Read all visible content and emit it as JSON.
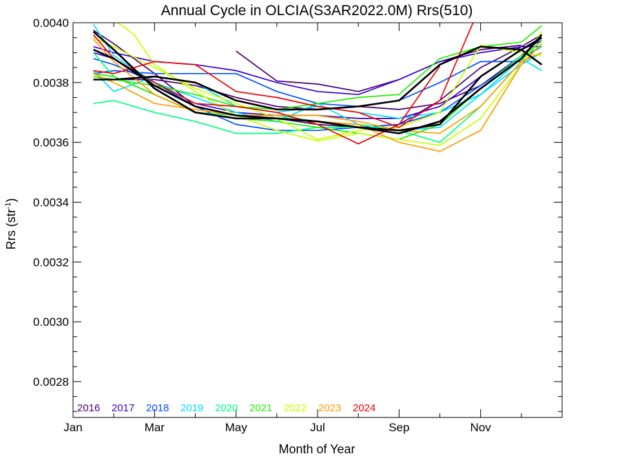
{
  "chart_data": {
    "type": "line",
    "title": "Annual Cycle in OLCIA(S3AR2022.0M) Rrs(510)",
    "xlabel": "Month of Year",
    "ylabel": "Rrs (str",
    "ylabel_superscript": "-1",
    "ylabel_suffix": ")",
    "xlim": [
      0,
      12
    ],
    "ylim": [
      0.00268,
      0.004
    ],
    "x_ticks": [
      0,
      2,
      4,
      6,
      8,
      10
    ],
    "x_tick_labels": [
      "Jan",
      "Mar",
      "May",
      "Jul",
      "Sep",
      "Nov"
    ],
    "y_ticks": [
      0.0028,
      0.003,
      0.0032,
      0.0034,
      0.0036,
      0.0038,
      0.004
    ],
    "y_tick_labels": [
      "0.0028",
      "0.0030",
      "0.0032",
      "0.0034",
      "0.0036",
      "0.0038",
      "0.0040"
    ],
    "grid": false,
    "legend_position": "bottom-left",
    "legend": [
      {
        "label": "2016",
        "color": "#4a0070"
      },
      {
        "label": "2017",
        "color": "#3a00d8"
      },
      {
        "label": "2018",
        "color": "#0050ff"
      },
      {
        "label": "2019",
        "color": "#00ddff"
      },
      {
        "label": "2020",
        "color": "#00ff80"
      },
      {
        "label": "2021",
        "color": "#20ee00"
      },
      {
        "label": "2022",
        "color": "#c8ff00"
      },
      {
        "label": "2023",
        "color": "#ff9a00"
      },
      {
        "label": "2024",
        "color": "#ee0000"
      }
    ],
    "series": [
      {
        "color": "#4a0070",
        "x": [
          4,
          5,
          6,
          7,
          8,
          9,
          10,
          11
        ],
        "y": [
          0.003905,
          0.003805,
          0.003795,
          0.00377,
          0.00381,
          0.00387,
          0.00391,
          0.003925
        ]
      },
      {
        "color": "#4a0070",
        "x": [
          0.5,
          1,
          2,
          3,
          4,
          5,
          6,
          7,
          8,
          9,
          10,
          11,
          11.5
        ],
        "y": [
          0.003975,
          0.00393,
          0.00383,
          0.00372,
          0.00369,
          0.00368,
          0.00366,
          0.00365,
          0.00366,
          0.00374,
          0.00385,
          0.00392,
          0.00396
        ]
      },
      {
        "color": "#4a0070",
        "x": [
          0.5,
          1,
          2,
          3,
          4,
          5,
          6,
          7,
          8,
          9,
          10,
          11,
          11.5
        ],
        "y": [
          0.00381,
          0.00381,
          0.00381,
          0.00379,
          0.00375,
          0.00372,
          0.00371,
          0.00372,
          0.00371,
          0.00373,
          0.00379,
          0.00389,
          0.00395
        ]
      },
      {
        "color": "#3a00d8",
        "x": [
          0.5,
          1,
          2,
          3,
          4,
          5,
          6,
          7,
          8,
          9,
          10,
          11,
          11.5
        ],
        "y": [
          0.00392,
          0.0039,
          0.00387,
          0.00386,
          0.00384,
          0.0038,
          0.00377,
          0.00376,
          0.00381,
          0.00387,
          0.0039,
          0.00392,
          0.00392
        ]
      },
      {
        "color": "#3a00d8",
        "x": [
          0.5,
          1,
          2,
          3,
          4,
          5,
          6,
          7,
          8,
          9,
          10,
          11,
          11.5
        ],
        "y": [
          0.0039,
          0.00388,
          0.0038,
          0.00373,
          0.0037,
          0.00369,
          0.00369,
          0.00368,
          0.00368,
          0.00372,
          0.00382,
          0.00391,
          0.00394
        ]
      },
      {
        "color": "#0050ff",
        "x": [
          0.5,
          1,
          2,
          3,
          4,
          5,
          6,
          7,
          8,
          9,
          10,
          11,
          11.5
        ],
        "y": [
          0.00383,
          0.00384,
          0.00383,
          0.00383,
          0.00383,
          0.00377,
          0.00373,
          0.00372,
          0.00374,
          0.0038,
          0.00387,
          0.00387,
          0.0039
        ]
      },
      {
        "color": "#0050ff",
        "x": [
          0.5,
          1,
          2,
          3,
          4,
          5,
          6,
          7,
          8,
          9,
          10,
          11,
          11.5
        ],
        "y": [
          0.00388,
          0.00386,
          0.0038,
          0.00372,
          0.00366,
          0.00364,
          0.00364,
          0.00365,
          0.00366,
          0.0037,
          0.00379,
          0.00388,
          0.00392
        ]
      },
      {
        "color": "#00ddff",
        "x": [
          0.5,
          1,
          2,
          3,
          4,
          5,
          6,
          7,
          8,
          9,
          10,
          11,
          11.5
        ],
        "y": [
          0.003995,
          0.00389,
          0.0038,
          0.00375,
          0.0037,
          0.00367,
          0.00373,
          0.00366,
          0.00364,
          0.00365,
          0.00376,
          0.00388,
          0.00384
        ]
      },
      {
        "color": "#00ddff",
        "x": [
          0.5,
          1,
          2,
          3,
          4,
          5,
          6,
          7,
          8,
          9,
          10,
          11,
          11.5
        ],
        "y": [
          0.00384,
          0.00377,
          0.00382,
          0.0038,
          0.00372,
          0.0037,
          0.00372,
          0.0037,
          0.00368,
          0.0037,
          0.00376,
          0.00386,
          0.0039
        ]
      },
      {
        "color": "#00ff80",
        "x": [
          0.5,
          1,
          2,
          3,
          4,
          5,
          6,
          7,
          8,
          9,
          10,
          11,
          11.5
        ],
        "y": [
          0.00373,
          0.00374,
          0.0037,
          0.00367,
          0.00363,
          0.00363,
          0.00365,
          0.00365,
          0.00364,
          0.00366,
          0.00378,
          0.00389,
          0.00392
        ]
      },
      {
        "color": "#00ff80",
        "x": [
          0.5,
          1,
          2,
          3,
          4,
          5,
          6,
          7,
          8,
          9,
          10,
          11,
          11.5
        ],
        "y": [
          0.0039,
          0.00382,
          0.00376,
          0.0037,
          0.00369,
          0.00369,
          0.00367,
          0.00366,
          0.00364,
          0.0036,
          0.00372,
          0.00387,
          0.00397
        ]
      },
      {
        "color": "#20ee00",
        "x": [
          0.5,
          1,
          2,
          3,
          4,
          5,
          6,
          7,
          8,
          9,
          10,
          11,
          11.5
        ],
        "y": [
          0.00382,
          0.00381,
          0.00379,
          0.00376,
          0.00372,
          0.00371,
          0.00373,
          0.00375,
          0.00376,
          0.00388,
          0.00392,
          0.003935,
          0.00399
        ]
      },
      {
        "color": "#20ee00",
        "x": [
          0.5,
          1,
          2,
          3,
          4,
          5,
          6,
          7,
          8,
          9,
          10,
          11,
          11.5
        ],
        "y": [
          0.00383,
          0.00382,
          0.00376,
          0.0037,
          0.00368,
          0.00367,
          0.00365,
          0.00363,
          0.00361,
          0.00366,
          0.00378,
          0.00388,
          0.00394
        ]
      },
      {
        "color": "#c8ff00",
        "x": [
          1,
          1.5,
          2,
          3,
          4,
          5,
          6,
          7,
          8,
          9,
          10,
          11,
          11.5
        ],
        "y": [
          0.00401,
          0.00396,
          0.00386,
          0.00377,
          0.00369,
          0.00364,
          0.003605,
          0.00363,
          0.00361,
          0.00359,
          0.00368,
          0.00386,
          0.00397
        ]
      },
      {
        "color": "#c8ff00",
        "x": [
          0.5,
          1,
          2,
          3,
          4,
          5,
          6,
          7,
          8,
          9,
          10,
          11,
          11.5
        ],
        "y": [
          0.00395,
          0.00392,
          0.00385,
          0.00378,
          0.00373,
          0.00368,
          0.00361,
          0.00364,
          0.00365,
          0.0037,
          0.003925,
          0.0039,
          0.00389
        ]
      },
      {
        "color": "#ff9a00",
        "x": [
          0.5,
          1,
          2,
          3,
          4,
          5,
          6,
          7,
          8,
          9,
          10,
          11,
          11.5
        ],
        "y": [
          0.003945,
          0.00387,
          0.00376,
          0.0037,
          0.00368,
          0.00368,
          0.00367,
          0.00366,
          0.0036,
          0.00357,
          0.00364,
          0.00386,
          0.00393
        ]
      },
      {
        "color": "#ff9a00",
        "x": [
          0.5,
          1,
          2,
          3,
          4,
          5,
          6,
          7,
          8,
          9,
          10,
          11,
          11.5
        ],
        "y": [
          0.00383,
          0.0038,
          0.00373,
          0.00371,
          0.00369,
          0.00369,
          0.00369,
          0.00367,
          0.00364,
          0.00363,
          0.00372,
          0.00387,
          0.0039
        ]
      },
      {
        "color": "#ee0000",
        "x": [
          0.5,
          1,
          2,
          3,
          4,
          5,
          6,
          7,
          8,
          9,
          10
        ],
        "y": [
          0.00384,
          0.00383,
          0.00387,
          0.00386,
          0.00377,
          0.00375,
          0.00372,
          0.0037,
          0.00365,
          0.00374,
          0.00406
        ]
      },
      {
        "color": "#ee0000",
        "x": [
          0.5,
          1,
          2,
          3,
          4,
          5,
          6,
          7,
          8,
          9
        ],
        "y": [
          0.00396,
          0.00388,
          0.0038,
          0.00373,
          0.00372,
          0.0037,
          0.00366,
          0.003595,
          0.00366,
          0.003855
        ]
      },
      {
        "color": "#000000",
        "x": [
          0.5,
          1,
          2,
          3,
          4,
          5,
          6,
          7,
          8,
          9,
          10,
          11,
          11.5
        ],
        "y": [
          0.00381,
          0.00381,
          0.00382,
          0.0038,
          0.00374,
          0.00371,
          0.00371,
          0.00372,
          0.00374,
          0.00386,
          0.00392,
          0.00391,
          0.00386
        ]
      },
      {
        "color": "#000000",
        "x": [
          0.5,
          1,
          2,
          3,
          4,
          5,
          6,
          7,
          8,
          9,
          10,
          11,
          11.5
        ],
        "y": [
          0.00391,
          0.00388,
          0.00379,
          0.00372,
          0.00369,
          0.00368,
          0.00367,
          0.00365,
          0.00363,
          0.00367,
          0.00378,
          0.00388,
          0.00396
        ]
      },
      {
        "color": "#000000",
        "x": [
          0.5,
          1,
          2,
          3,
          4,
          5,
          6,
          7,
          8,
          9,
          10,
          11,
          11.5
        ],
        "y": [
          0.00397,
          0.00391,
          0.00378,
          0.0037,
          0.00368,
          0.00368,
          0.00367,
          0.00365,
          0.00364,
          0.00366,
          0.00382,
          0.00391,
          0.00395
        ]
      }
    ]
  }
}
